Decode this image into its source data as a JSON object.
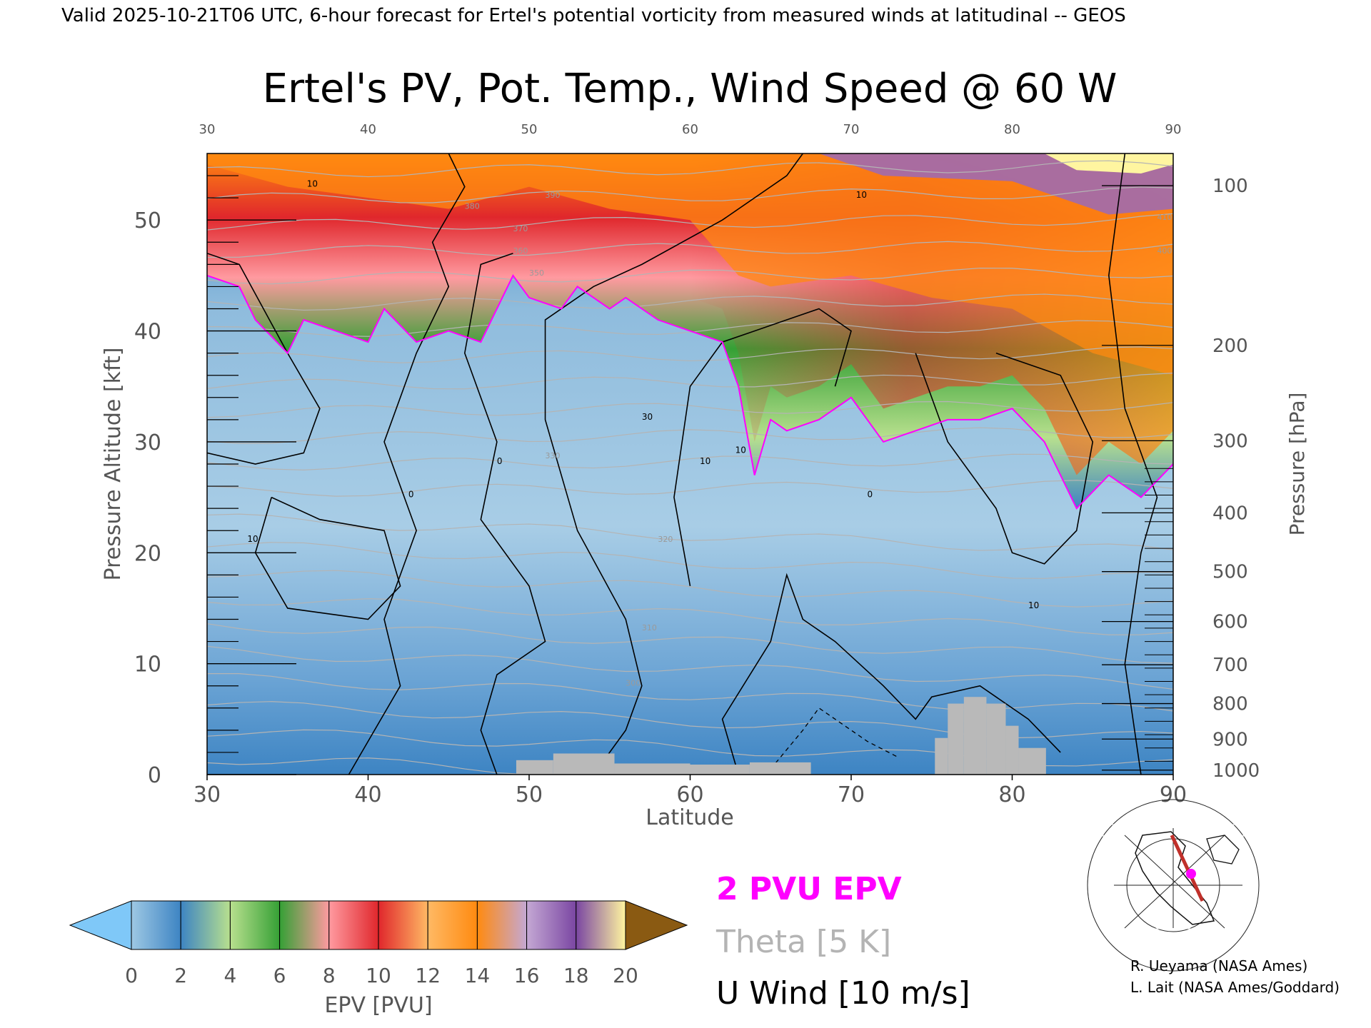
{
  "header": {
    "valid_line": "Valid 2025-10-21T06 UTC, 6-hour forecast for Ertel's potential vorticity from measured winds at latitudinal -- GEOS"
  },
  "chart_data": {
    "type": "heatmap",
    "title": "Ertel's PV, Pot. Temp., Wind Speed @ 60 W",
    "xlabel": "Latitude",
    "ylabel_left": "Pressure Altitude [kft]",
    "ylabel_right": "Pressure [hPa]",
    "xlim": [
      30,
      90
    ],
    "ylim_kft": [
      0,
      56
    ],
    "x_ticks": [
      "30",
      "40",
      "50",
      "60",
      "70",
      "80",
      "90"
    ],
    "top_ticks": [
      "30",
      "40",
      "50",
      "60",
      "70",
      "80",
      "90"
    ],
    "y_ticks_kft": [
      "0",
      "10",
      "20",
      "30",
      "40",
      "50"
    ],
    "pressure_ticks": [
      {
        "label": "100",
        "kft": 53.1
      },
      {
        "label": "200",
        "kft": 38.7
      },
      {
        "label": "300",
        "kft": 30.1
      },
      {
        "label": "400",
        "kft": 23.6
      },
      {
        "label": "500",
        "kft": 18.3
      },
      {
        "label": "600",
        "kft": 13.8
      },
      {
        "label": "700",
        "kft": 9.9
      },
      {
        "label": "800",
        "kft": 6.4
      },
      {
        "label": "900",
        "kft": 3.2
      },
      {
        "label": "1000",
        "kft": 0.4
      }
    ],
    "epv_2pvu_boundary": {
      "lat": [
        30,
        32,
        33,
        35,
        36,
        38,
        40,
        41,
        43,
        45,
        47,
        49,
        50,
        52,
        53,
        55,
        56,
        58,
        60,
        62,
        63,
        64,
        65,
        66,
        68,
        70,
        72,
        74,
        76,
        78,
        80,
        82,
        84,
        86,
        88,
        90
      ],
      "kft": [
        45,
        44,
        41,
        38,
        41,
        40,
        39,
        42,
        39,
        40,
        39,
        45,
        43,
        42,
        44,
        42,
        43,
        41,
        40,
        39,
        35,
        27,
        32,
        31,
        32,
        34,
        30,
        31,
        32,
        32,
        33,
        30,
        24,
        27,
        25,
        28
      ]
    },
    "tropopause_top": {
      "lat": [
        30,
        35,
        40,
        45,
        50,
        55,
        60,
        63,
        65,
        70,
        75,
        80,
        85,
        90
      ],
      "kft": [
        50,
        48,
        47,
        46,
        48,
        46,
        45,
        40,
        39,
        40,
        38,
        37,
        33,
        31
      ]
    },
    "theta_labels": [
      "390",
      "380",
      "370",
      "360",
      "350",
      "330",
      "320",
      "310",
      "300",
      "410",
      "400"
    ],
    "wind_labels": [
      "10",
      "0",
      "10",
      "30",
      "10",
      "0",
      "10",
      "10",
      "0",
      "10"
    ],
    "terrain": [
      {
        "lat0": 49.2,
        "lat1": 51.5,
        "kft": 1.3
      },
      {
        "lat0": 51.5,
        "lat1": 55.3,
        "kft": 1.9
      },
      {
        "lat0": 55.3,
        "lat1": 60.0,
        "kft": 1.0
      },
      {
        "lat0": 60.0,
        "lat1": 63.7,
        "kft": 0.9
      },
      {
        "lat0": 63.7,
        "lat1": 67.5,
        "kft": 1.1
      },
      {
        "lat0": 75.2,
        "lat1": 76.0,
        "kft": 3.3
      },
      {
        "lat0": 76.0,
        "lat1": 77.0,
        "kft": 6.4
      },
      {
        "lat0": 77.0,
        "lat1": 78.4,
        "kft": 7.0
      },
      {
        "lat0": 78.4,
        "lat1": 79.6,
        "kft": 6.4
      },
      {
        "lat0": 79.6,
        "lat1": 80.4,
        "kft": 4.4
      },
      {
        "lat0": 80.4,
        "lat1": 82.1,
        "kft": 2.4
      }
    ]
  },
  "colorbar": {
    "label": "EPV [PVU]",
    "ticks": [
      "0",
      "2",
      "4",
      "6",
      "8",
      "10",
      "12",
      "14",
      "16",
      "18",
      "20"
    ],
    "colors": [
      "#9ec8e4",
      "#3d84c3",
      "#b8e08e",
      "#35a035",
      "#ff9aa0",
      "#e0272c",
      "#ffb964",
      "#ff8a10",
      "#c4a8d4",
      "#7a46a2",
      "#fff5a0",
      "#8a5a12",
      "#7fc8f8"
    ]
  },
  "legend": {
    "epv_label": "2 PVU EPV",
    "theta_label": "Theta [5 K]",
    "wind_label": "U Wind [10 m/s]",
    "epv_color": "#ff00ff",
    "theta_color": "#b4b4b4",
    "wind_color": "#000000"
  },
  "credits": {
    "line1": "R. Ueyama (NASA Ames)",
    "line2": "L. Lait (NASA Ames/Goddard)"
  }
}
